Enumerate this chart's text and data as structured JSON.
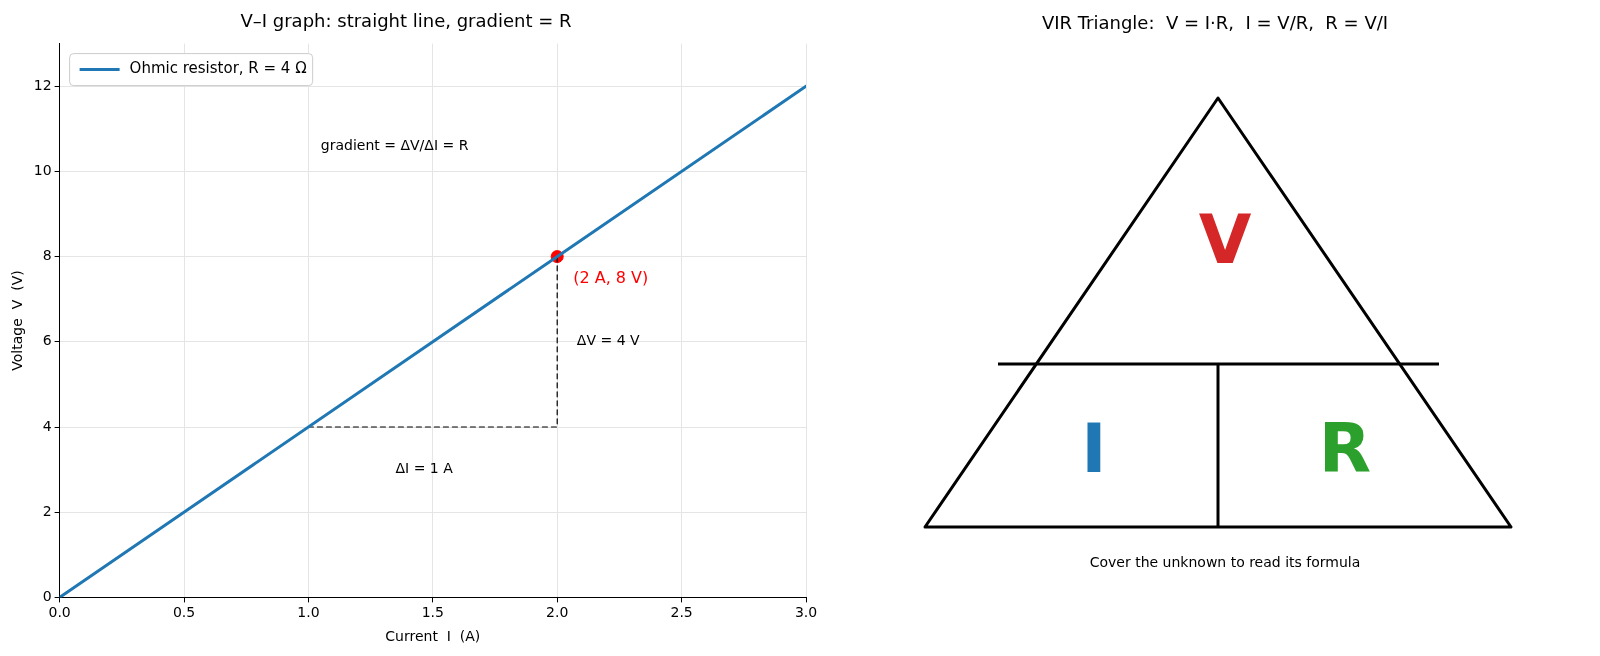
{
  "chart_data": [
    {
      "type": "line",
      "title": "V–I graph: straight line, gradient = R",
      "xlabel": "Current  I  (A)",
      "ylabel": "Voltage  V  (V)",
      "xlim": [
        0,
        3
      ],
      "ylim": [
        0,
        13
      ],
      "xticks": [
        {
          "value": 0,
          "label": "0.0"
        },
        {
          "value": 0.5,
          "label": "0.5"
        },
        {
          "value": 1,
          "label": "1.0"
        },
        {
          "value": 1.5,
          "label": "1.5"
        },
        {
          "value": 2,
          "label": "2.0"
        },
        {
          "value": 2.5,
          "label": "2.5"
        },
        {
          "value": 3,
          "label": "3.0"
        }
      ],
      "yticks": [
        0,
        2,
        4,
        6,
        8,
        10,
        12
      ],
      "grid": true,
      "legend": "top left",
      "marker": "none",
      "series": [
        {
          "name": "Ohmic resistor, R = 4 Ω",
          "color": "#1f77b4",
          "x": [
            0,
            3
          ],
          "values": [
            0,
            12
          ]
        },
        {
          "type": "line",
          "color": "#000000",
          "line_style": "dashed",
          "x": [
            1,
            2,
            2
          ],
          "values": [
            4,
            4,
            8
          ]
        },
        {
          "type": "scatter",
          "color": "#ff0000",
          "marker": "circle",
          "x": [
            2
          ],
          "values": [
            8
          ],
          "value_labels": [
            "(2 A, 8 V)"
          ]
        }
      ],
      "annotations": [
        "gradient = ΔV/ΔI = R",
        "ΔV = 4 V",
        "ΔI = 1 A"
      ]
    },
    {
      "type": "other",
      "title": "VIR Triangle:  V = I·R,  I = V/R,  R = V/I",
      "annotations": [
        "V",
        "I",
        "R",
        "Cover the unknown to read its formula"
      ]
    }
  ]
}
